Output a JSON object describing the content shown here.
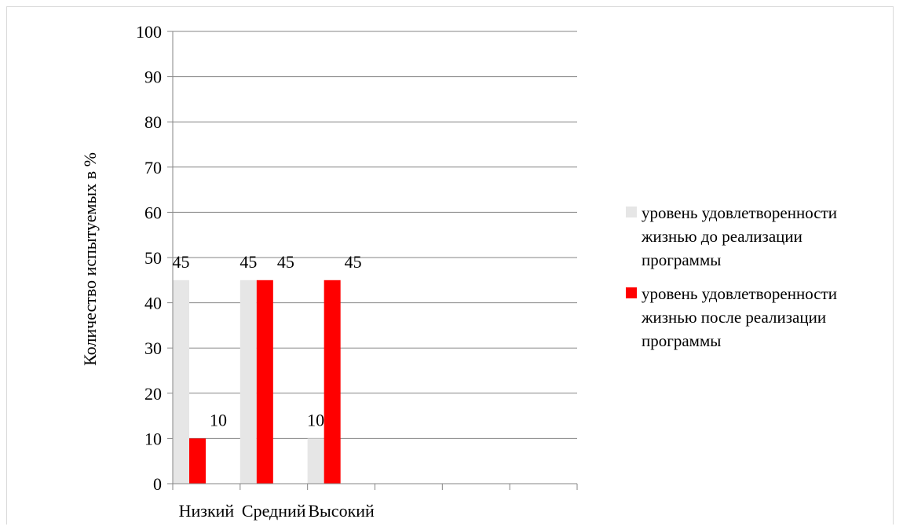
{
  "chart_data": {
    "type": "bar",
    "title": "",
    "xlabel": "",
    "ylabel": "Количество испытуемых в %",
    "ylim": [
      0,
      100
    ],
    "yticks": [
      "0",
      "10",
      "20",
      "30",
      "40",
      "50",
      "60",
      "70",
      "80",
      "90",
      "100"
    ],
    "categories": [
      "Низкий",
      "Средний",
      "Высокий"
    ],
    "empty_category_slots": 3,
    "grid": true,
    "legend_position": "right",
    "series": [
      {
        "name": "уровень удовлетворенности жизнью до реализации программы",
        "legend_lines": [
          "уровень удовлетворенности",
          "жизнью до реализации",
          "программы"
        ],
        "color": "#e6e6e6",
        "values": [
          45,
          45,
          10
        ],
        "data_labels": [
          "45",
          "45",
          "10"
        ]
      },
      {
        "name": "уровень удовлетворенности жизнью после реализации программы",
        "legend_lines": [
          "уровень удовлетворенности",
          "жизнью после реализации",
          "программы"
        ],
        "color": "#ff0000",
        "values": [
          10,
          45,
          45
        ],
        "data_labels": [
          "10",
          "45",
          "45"
        ]
      }
    ]
  }
}
